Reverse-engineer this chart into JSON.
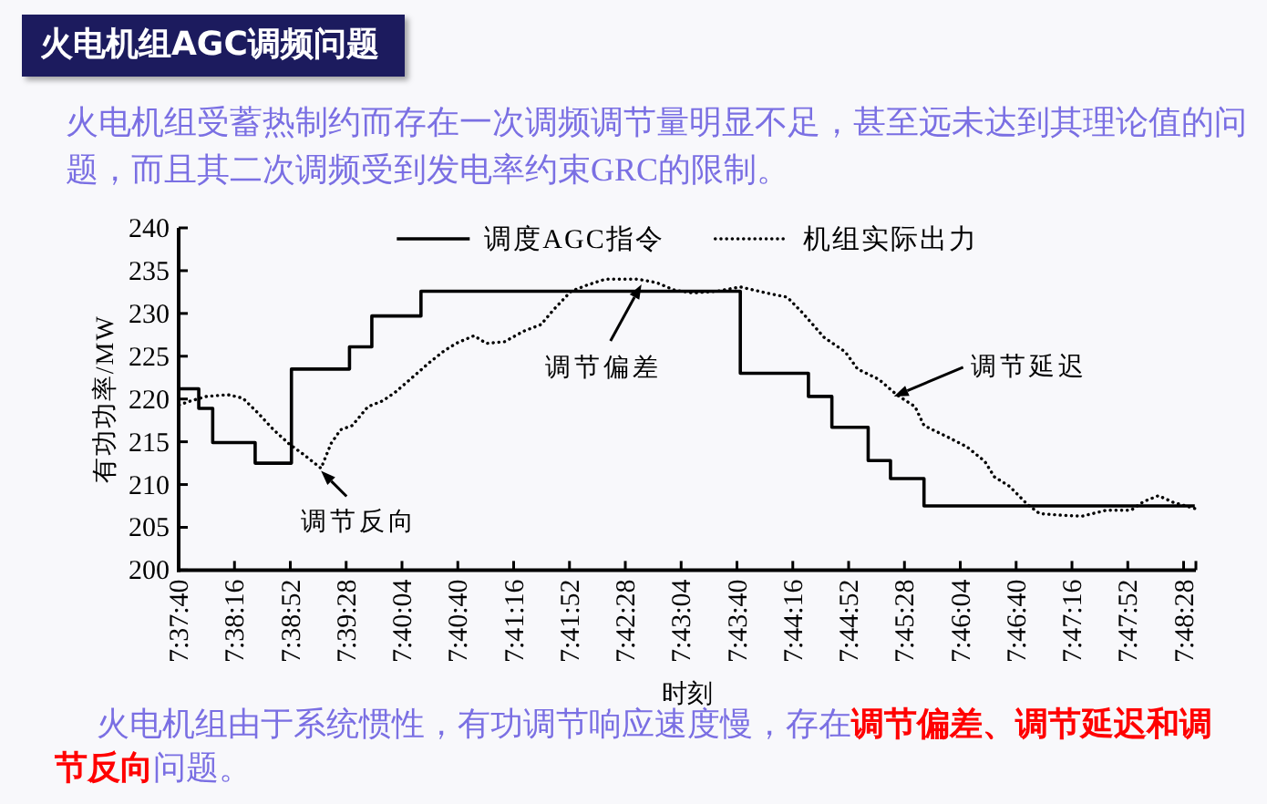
{
  "chart_data": {
    "type": "line",
    "title": "火电机组AGC调频问题",
    "subtitle": "火电机组受蓄热制约而存在一次调频调节量明显不足，甚至远未达到其理论值的问题，而且其二次调频受到发电率约束GRC的限制。",
    "xlabel": "时刻",
    "ylabel": "有功功率/MW",
    "annotations": [
      {
        "text": "调节反向",
        "x": 7.6533,
        "y": 211.6
      },
      {
        "text": "调节偏差",
        "x": 7.7107,
        "y": 233.4
      },
      {
        "text": "调节延迟",
        "x": 7.7559,
        "y": 220.3
      },
      "火电机组由于系统惯性，有功调节响应速度慢，存在**调节偏差、调节延迟和调节反向**问题。"
    ],
    "xlim": [
      7.6278,
      7.81
    ],
    "ylim": [
      200,
      240
    ],
    "yticks": [
      200,
      205,
      210,
      215,
      220,
      225,
      230,
      235,
      240
    ],
    "xticks": [
      {
        "value": 7.6278,
        "label": "7:37:40"
      },
      {
        "value": 7.6378,
        "label": "7:38:16"
      },
      {
        "value": 7.6478,
        "label": "7:38:52"
      },
      {
        "value": 7.6578,
        "label": "7:39:28"
      },
      {
        "value": 7.6678,
        "label": "7:40:04"
      },
      {
        "value": 7.6778,
        "label": "7:40:40"
      },
      {
        "value": 7.6878,
        "label": "7:41:16"
      },
      {
        "value": 7.6978,
        "label": "7:41:52"
      },
      {
        "value": 7.7078,
        "label": "7:42:28"
      },
      {
        "value": 7.7178,
        "label": "7:43:04"
      },
      {
        "value": 7.7278,
        "label": "7:43:40"
      },
      {
        "value": 7.7378,
        "label": "7:44:16"
      },
      {
        "value": 7.7478,
        "label": "7:44:52"
      },
      {
        "value": 7.7578,
        "label": "7:45:28"
      },
      {
        "value": 7.7678,
        "label": "7:46:04"
      },
      {
        "value": 7.7778,
        "label": "7:46:40"
      },
      {
        "value": 7.7878,
        "label": "7:47:16"
      },
      {
        "value": 7.7978,
        "label": "7:47:52"
      },
      {
        "value": 7.8078,
        "label": "7:48:28"
      },
      {
        "value": 7.81,
        "label": null
      }
    ],
    "legend": "top",
    "series": [
      {
        "name": "调度AGC指令",
        "type": "step",
        "color": "#000000",
        "line_style": "solid",
        "x": [
          7.6279,
          7.6314,
          7.6339,
          7.6415,
          7.648,
          7.6584,
          7.6624,
          7.6712,
          7.7284,
          7.7406,
          7.7448,
          7.7513,
          7.7553,
          7.7613,
          7.8098
        ],
        "values": [
          221.2,
          218.9,
          214.9,
          212.5,
          223.5,
          226.1,
          229.7,
          232.6,
          223.0,
          220.3,
          216.7,
          212.8,
          210.7,
          207.5,
          207.5
        ]
      },
      {
        "name": "机组实际出力",
        "type": "line",
        "color": "#000000",
        "line_style": "dotted",
        "x": [
          7.6279,
          7.6301,
          7.6328,
          7.6366,
          7.6393,
          7.6421,
          7.6448,
          7.6475,
          7.6502,
          7.6533,
          7.6551,
          7.6568,
          7.6589,
          7.6617,
          7.6644,
          7.6666,
          7.6698,
          7.6726,
          7.6753,
          7.6775,
          7.6807,
          7.6829,
          7.6862,
          7.6895,
          7.6927,
          7.6949,
          7.6981,
          7.7009,
          7.7042,
          7.7101,
          7.7134,
          7.7167,
          7.7199,
          7.7243,
          7.7284,
          7.733,
          7.7368,
          7.7395,
          7.7434,
          7.7472,
          7.7494,
          7.7532,
          7.7564,
          7.7597,
          7.7613,
          7.7657,
          7.769,
          7.7722,
          7.7739,
          7.7766,
          7.7798,
          7.782,
          7.7864,
          7.7896,
          7.794,
          7.7984,
          7.8006,
          7.8033,
          7.806,
          7.8098
        ],
        "values": [
          219.3,
          219.8,
          220.3,
          220.5,
          220.1,
          218.3,
          216.4,
          214.8,
          213.5,
          211.9,
          214.8,
          216.4,
          216.9,
          219.1,
          219.8,
          220.8,
          222.6,
          224.2,
          225.6,
          226.5,
          227.4,
          226.5,
          226.7,
          227.9,
          228.7,
          230.4,
          232.6,
          233.3,
          234.0,
          234.0,
          233.6,
          232.7,
          232.4,
          232.6,
          233.1,
          232.4,
          231.9,
          230.1,
          227.2,
          225.5,
          223.5,
          222.3,
          220.5,
          219.1,
          216.9,
          215.5,
          214.4,
          212.7,
          210.9,
          209.8,
          207.7,
          206.6,
          206.4,
          206.3,
          207.0,
          207.0,
          208.0,
          208.7,
          207.9,
          207.2
        ]
      }
    ]
  }
}
